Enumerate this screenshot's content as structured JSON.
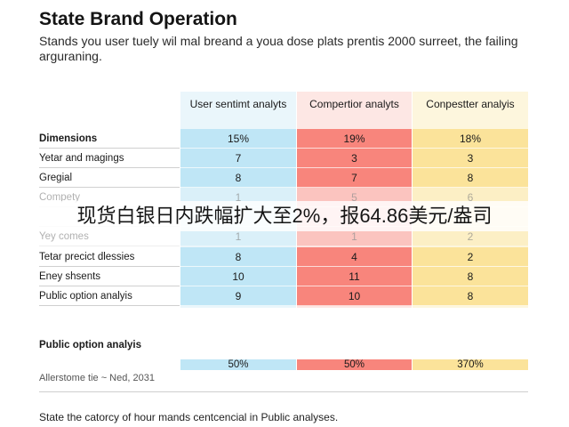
{
  "header": {
    "title": "State Brand Operation",
    "subtitle": "Stands you user tuely wil mal breand a youa dose plats prentis 2000 surreet, the failing arguraning."
  },
  "table": {
    "columns": [
      "User sentimt analyts",
      "Compertior analyts",
      "Conpestter analyis"
    ],
    "rows": [
      {
        "label": "Dimensions",
        "values": [
          "15%",
          "19%",
          "18%"
        ]
      },
      {
        "label": "Yetar and magings",
        "values": [
          "7",
          "3",
          "3"
        ]
      },
      {
        "label": "Gregial",
        "values": [
          "8",
          "7",
          "8"
        ]
      },
      {
        "label": "Compety",
        "values": [
          "1",
          "5",
          "6"
        ]
      },
      {
        "label": "",
        "values": [
          "4",
          "",
          ""
        ]
      },
      {
        "label": "Yey comes",
        "values": [
          "1",
          "1",
          "2"
        ]
      },
      {
        "label": "Tetar precict dlessies",
        "values": [
          "8",
          "4",
          "2"
        ]
      },
      {
        "label": "Eney shsents",
        "values": [
          "10",
          "11",
          "8"
        ]
      },
      {
        "label": "Public option analyis",
        "values": [
          "9",
          "10",
          "8"
        ]
      }
    ]
  },
  "banner": {
    "text": "现货白银日内跌幅扩大至2%，报64.86美元/盎司"
  },
  "summary": {
    "label": "Public option analyis",
    "values": [
      "50%",
      "50%",
      "370%"
    ],
    "note": "Allerstome tie ~ Ned, 2031"
  },
  "footer": {
    "text": "State the catorcy of hour mands centcencial in Public analyses."
  },
  "colors": {
    "col1": "#bfe6f6",
    "col2": "#f8857c",
    "col3": "#fbe39a"
  }
}
